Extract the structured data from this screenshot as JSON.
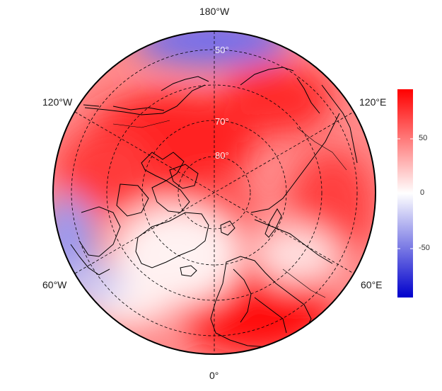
{
  "map": {
    "projection": "north-polar-stereographic",
    "center": "north-pole",
    "lon_labels": [
      {
        "id": "lon-180w",
        "text": "180°W"
      },
      {
        "id": "lon-120w",
        "text": "120°W"
      },
      {
        "id": "lon-120e",
        "text": "120°E"
      },
      {
        "id": "lon-60w",
        "text": "60°W"
      },
      {
        "id": "lon-60e",
        "text": "60°E"
      },
      {
        "id": "lon-0",
        "text": "0°"
      }
    ],
    "lat_labels": [
      {
        "id": "lat-50",
        "text": "50°"
      },
      {
        "id": "lat-70",
        "text": "70°"
      },
      {
        "id": "lat-80",
        "text": "80°"
      }
    ],
    "graticule_style": "dashed",
    "field_colors": {
      "high": "#ff0000",
      "mid": "#ffffff",
      "low": "#0000cc"
    }
  },
  "colorbar": {
    "ticks": [
      "50",
      "0",
      "-50"
    ],
    "colors": {
      "top": "#ff0000",
      "middle": "#ffffff",
      "bottom": "#0000cc"
    }
  }
}
